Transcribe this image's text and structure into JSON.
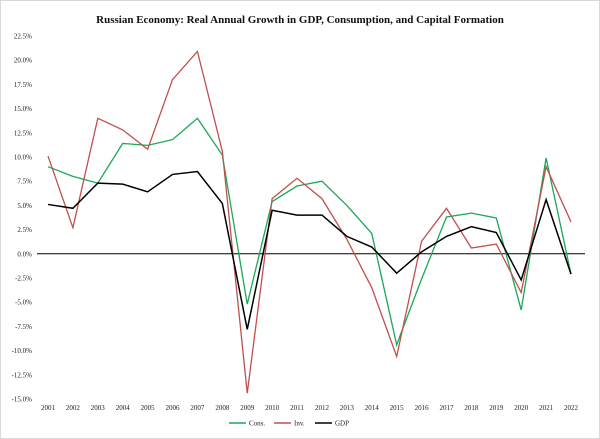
{
  "chart_data": {
    "type": "line",
    "title": "Russian Economy: Real Annual Growth in GDP, Consumption, and Capital Formation",
    "xlabel": "",
    "ylabel": "",
    "x": [
      "2001",
      "2002",
      "2003",
      "2004",
      "2005",
      "2006",
      "2007",
      "2008",
      "2009",
      "2010",
      "2011",
      "2012",
      "2013",
      "2014",
      "2015",
      "2016",
      "2017",
      "2018",
      "2019",
      "2020",
      "2021",
      "2022"
    ],
    "ylim": [
      -15.0,
      22.5
    ],
    "y_ticks": [
      22.5,
      20.0,
      17.5,
      15.0,
      12.5,
      10.0,
      7.5,
      5.0,
      2.5,
      0.0,
      -2.5,
      -5.0,
      -7.5,
      -10.0,
      -12.5,
      -15.0
    ],
    "y_tick_labels": [
      "22.5%",
      "20.0%",
      "17.5%",
      "15.0%",
      "12.5%",
      "10.0%",
      "7.5%",
      "5.0%",
      "2.5%",
      "0.0%",
      "-2.5%",
      "-5.0%",
      "-7.5%",
      "-10.0%",
      "-12.5%",
      "-15.0%"
    ],
    "zero_line": true,
    "grid": false,
    "legend_position": "bottom",
    "series": [
      {
        "name": "Cons.",
        "color": "#1aa856",
        "values": [
          9.0,
          8.0,
          7.3,
          11.4,
          11.2,
          11.8,
          14.0,
          10.2,
          -5.2,
          5.4,
          7.0,
          7.5,
          5.0,
          2.1,
          -9.4,
          -2.6,
          3.8,
          4.2,
          3.7,
          -5.8,
          9.9,
          -2.1
        ]
      },
      {
        "name": "Inv.",
        "color": "#c0504d",
        "values": [
          10.1,
          2.7,
          14.0,
          12.8,
          10.8,
          18.0,
          20.9,
          10.6,
          -14.4,
          5.7,
          7.8,
          5.7,
          1.5,
          -3.5,
          -10.6,
          1.3,
          4.7,
          0.6,
          1.0,
          -4.0,
          9.0,
          3.3
        ]
      },
      {
        "name": "GDP",
        "color": "#000000",
        "values": [
          5.1,
          4.7,
          7.3,
          7.2,
          6.4,
          8.2,
          8.5,
          5.2,
          -7.8,
          4.5,
          4.0,
          4.0,
          1.8,
          0.7,
          -2.0,
          0.2,
          1.8,
          2.8,
          2.2,
          -2.7,
          5.6,
          -2.1
        ]
      }
    ]
  }
}
